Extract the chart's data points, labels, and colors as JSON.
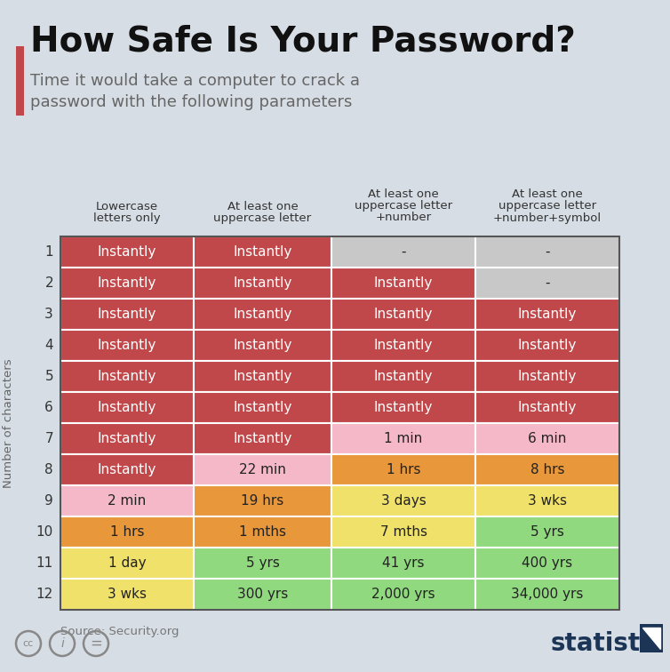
{
  "title": "How Safe Is Your Password?",
  "subtitle": "Time it would take a computer to crack a\npassword with the following parameters",
  "source": "Source: Security.org",
  "col_headers": [
    "Lowercase\nletters only",
    "At least one\nuppercase letter",
    "At least one\nuppercase letter\n+number",
    "At least one\nuppercase letter\n+number+symbol"
  ],
  "row_labels": [
    "1",
    "2",
    "3",
    "4",
    "5",
    "6",
    "7",
    "8",
    "9",
    "10",
    "11",
    "12"
  ],
  "table_data": [
    [
      "Instantly",
      "Instantly",
      "-",
      "-"
    ],
    [
      "Instantly",
      "Instantly",
      "Instantly",
      "-"
    ],
    [
      "Instantly",
      "Instantly",
      "Instantly",
      "Instantly"
    ],
    [
      "Instantly",
      "Instantly",
      "Instantly",
      "Instantly"
    ],
    [
      "Instantly",
      "Instantly",
      "Instantly",
      "Instantly"
    ],
    [
      "Instantly",
      "Instantly",
      "Instantly",
      "Instantly"
    ],
    [
      "Instantly",
      "Instantly",
      "1 min",
      "6 min"
    ],
    [
      "Instantly",
      "22 min",
      "1 hrs",
      "8 hrs"
    ],
    [
      "2 min",
      "19 hrs",
      "3 days",
      "3 wks"
    ],
    [
      "1 hrs",
      "1 mths",
      "7 mths",
      "5 yrs"
    ],
    [
      "1 day",
      "5 yrs",
      "41 yrs",
      "400 yrs"
    ],
    [
      "3 wks",
      "300 yrs",
      "2,000 yrs",
      "34,000 yrs"
    ]
  ],
  "cell_colors": [
    [
      "#c0474a",
      "#c0474a",
      "#c8c8c8",
      "#c8c8c8"
    ],
    [
      "#c0474a",
      "#c0474a",
      "#c0474a",
      "#c8c8c8"
    ],
    [
      "#c0474a",
      "#c0474a",
      "#c0474a",
      "#c0474a"
    ],
    [
      "#c0474a",
      "#c0474a",
      "#c0474a",
      "#c0474a"
    ],
    [
      "#c0474a",
      "#c0474a",
      "#c0474a",
      "#c0474a"
    ],
    [
      "#c0474a",
      "#c0474a",
      "#c0474a",
      "#c0474a"
    ],
    [
      "#c0474a",
      "#c0474a",
      "#f4b8c8",
      "#f4b8c8"
    ],
    [
      "#c0474a",
      "#f4b8c8",
      "#e8973a",
      "#e8973a"
    ],
    [
      "#f4b8c8",
      "#e8973a",
      "#f0e16a",
      "#f0e16a"
    ],
    [
      "#e8973a",
      "#e8973a",
      "#f0e16a",
      "#90d97f"
    ],
    [
      "#f0e16a",
      "#90d97f",
      "#90d97f",
      "#90d97f"
    ],
    [
      "#f0e16a",
      "#90d97f",
      "#90d97f",
      "#90d97f"
    ]
  ],
  "bg_color": "#d6dde5",
  "title_color": "#111111",
  "subtitle_color": "#666666",
  "accent_color": "#c0474a",
  "ylabel": "Number of characters",
  "statista_color": "#1c3557",
  "source_color": "#777777"
}
